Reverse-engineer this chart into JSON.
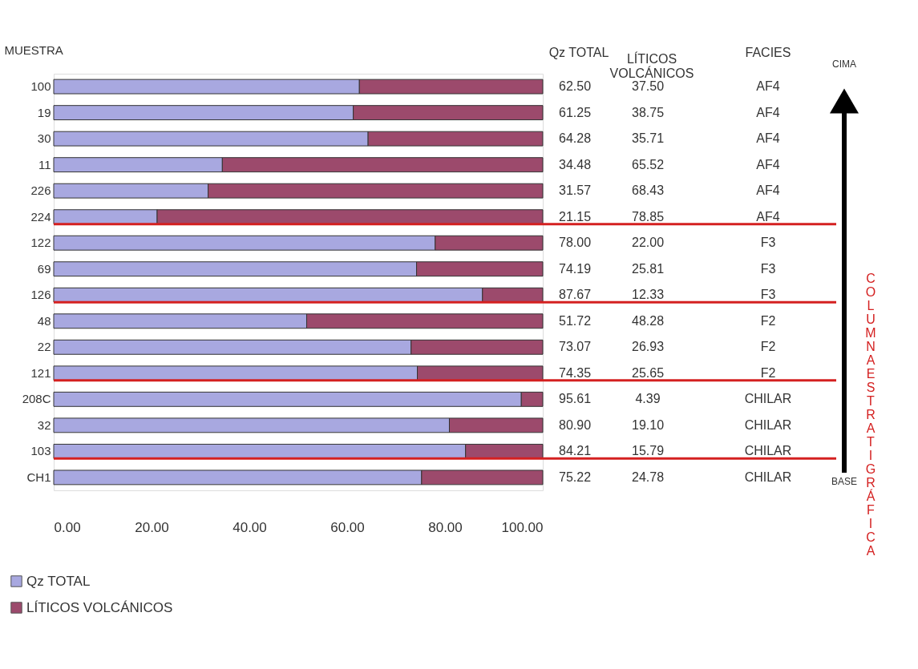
{
  "chart_data": {
    "type": "bar",
    "orientation": "horizontal",
    "stacked": true,
    "ylabel": "MUESTRA",
    "categories": [
      "100",
      "19",
      "30",
      "11",
      "226",
      "224",
      "122",
      "69",
      "126",
      "48",
      "22",
      "121",
      "208C",
      "32",
      "103",
      "CH1"
    ],
    "y2_categories": [
      "AF4",
      "AF4",
      "AF4",
      "AF4",
      "AF4",
      "AF4",
      "F3",
      "F3",
      "F3",
      "F2",
      "F2",
      "F2",
      "CHILAR",
      "CHILAR",
      "CHILAR",
      "CHILAR"
    ],
    "series": [
      {
        "name": "Qz TOTAL",
        "color": "#a8a8e0",
        "values": [
          62.5,
          61.25,
          64.28,
          34.48,
          31.57,
          21.15,
          78.0,
          74.19,
          87.67,
          51.72,
          73.07,
          74.35,
          95.61,
          80.9,
          84.21,
          75.22
        ],
        "value_labels": [
          "62.50",
          "61.25",
          "64.28",
          "34.48",
          "31.57",
          "21.15",
          "78.00",
          "74.19",
          "87.67",
          "51.72",
          "73.07",
          "74.35",
          "95.61",
          "80.90",
          "84.21",
          "75.22"
        ]
      },
      {
        "name": "LÍTICOS VOLCÁNICOS",
        "color": "#9c4a6c",
        "values": [
          37.5,
          38.75,
          35.71,
          65.52,
          68.43,
          78.85,
          22.0,
          25.81,
          12.33,
          48.28,
          26.93,
          25.65,
          4.39,
          19.1,
          15.79,
          24.78
        ],
        "value_labels": [
          "37.50",
          "38.75",
          "35.71",
          "65.52",
          "68.43",
          "78.85",
          "22.00",
          "25.81",
          "12.33",
          "48.28",
          "26.93",
          "25.65",
          "4.39",
          "19.10",
          "15.79",
          "24.78"
        ]
      }
    ],
    "xlim": [
      0,
      100
    ],
    "xticks": [
      {
        "value": 0,
        "label": "0.00"
      },
      {
        "value": 20,
        "label": "20.00"
      },
      {
        "value": 40,
        "label": "40.00"
      },
      {
        "value": 60,
        "label": "60.00"
      },
      {
        "value": 80,
        "label": "80.00"
      },
      {
        "value": 100,
        "label": "100.00"
      }
    ],
    "ref_lines": [
      {
        "axis": "y",
        "value": "224",
        "color": "#d42020"
      },
      {
        "axis": "y",
        "value": "126",
        "color": "#d42020"
      },
      {
        "axis": "y",
        "value": "121",
        "color": "#d42020"
      },
      {
        "axis": "y",
        "value": "103",
        "color": "#d42020"
      }
    ],
    "annotations": [
      "FACIES",
      "CIMA",
      "BASE",
      "COLUMNA ESTRATIGRÁFICA"
    ],
    "legend": "bottom left"
  }
}
